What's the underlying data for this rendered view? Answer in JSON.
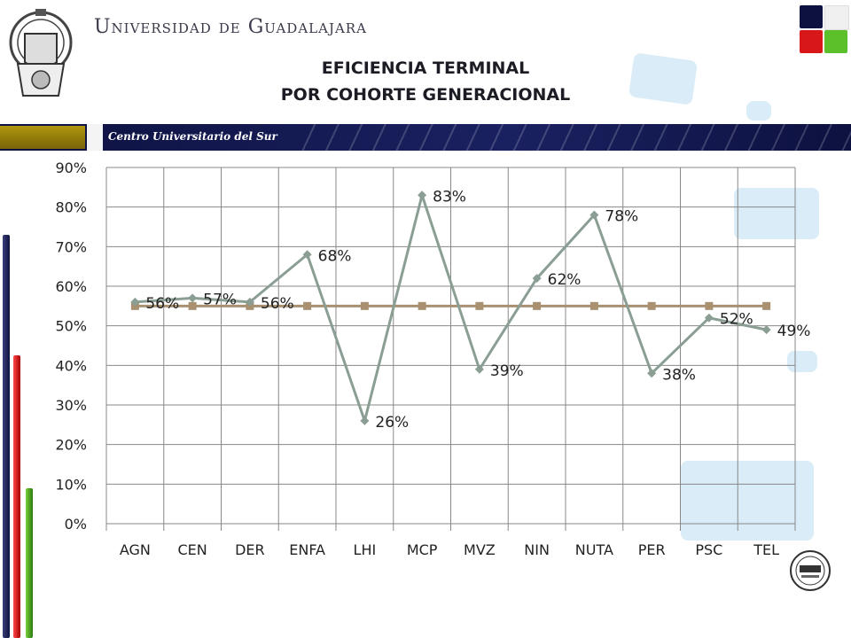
{
  "header": {
    "university_name": "Universidad de Guadalajara",
    "title_line1": "EFICIENCIA TERMINAL",
    "title_line2": "POR COHORTE GENERACIONAL",
    "banner_text": "Centro Universitario del Sur"
  },
  "colors": {
    "series_main": "#8a9e94",
    "series_ref": "#a89070",
    "grid": "#888888",
    "banner": "#0d1140",
    "gold": "#9c820c",
    "red": "#cc1010",
    "green": "#4aa01e"
  },
  "chart_data": {
    "type": "line",
    "title": "EFICIENCIA TERMINAL POR COHORTE GENERACIONAL",
    "xlabel": "",
    "ylabel": "",
    "categories": [
      "AGN",
      "CEN",
      "DER",
      "ENFA",
      "LHI",
      "MCP",
      "MVZ",
      "NIN",
      "NUTA",
      "PER",
      "PSC",
      "TEL"
    ],
    "ylim": [
      0,
      90
    ],
    "yticks": [
      "0%",
      "10%",
      "20%",
      "30%",
      "40%",
      "50%",
      "60%",
      "70%",
      "80%",
      "90%"
    ],
    "grid": true,
    "series": [
      {
        "values": [
          56,
          57,
          56,
          68,
          26,
          83,
          39,
          62,
          78,
          38,
          52,
          49
        ],
        "labels": [
          "56%",
          "57%",
          "56%",
          "68%",
          "26%",
          "83%",
          "39%",
          "62%",
          "78%",
          "38%",
          "52%",
          "49%"
        ],
        "marker": "diamond"
      },
      {
        "values": [
          55,
          55,
          55,
          55,
          55,
          55,
          55,
          55,
          55,
          55,
          55,
          55
        ],
        "marker": "square"
      }
    ]
  }
}
